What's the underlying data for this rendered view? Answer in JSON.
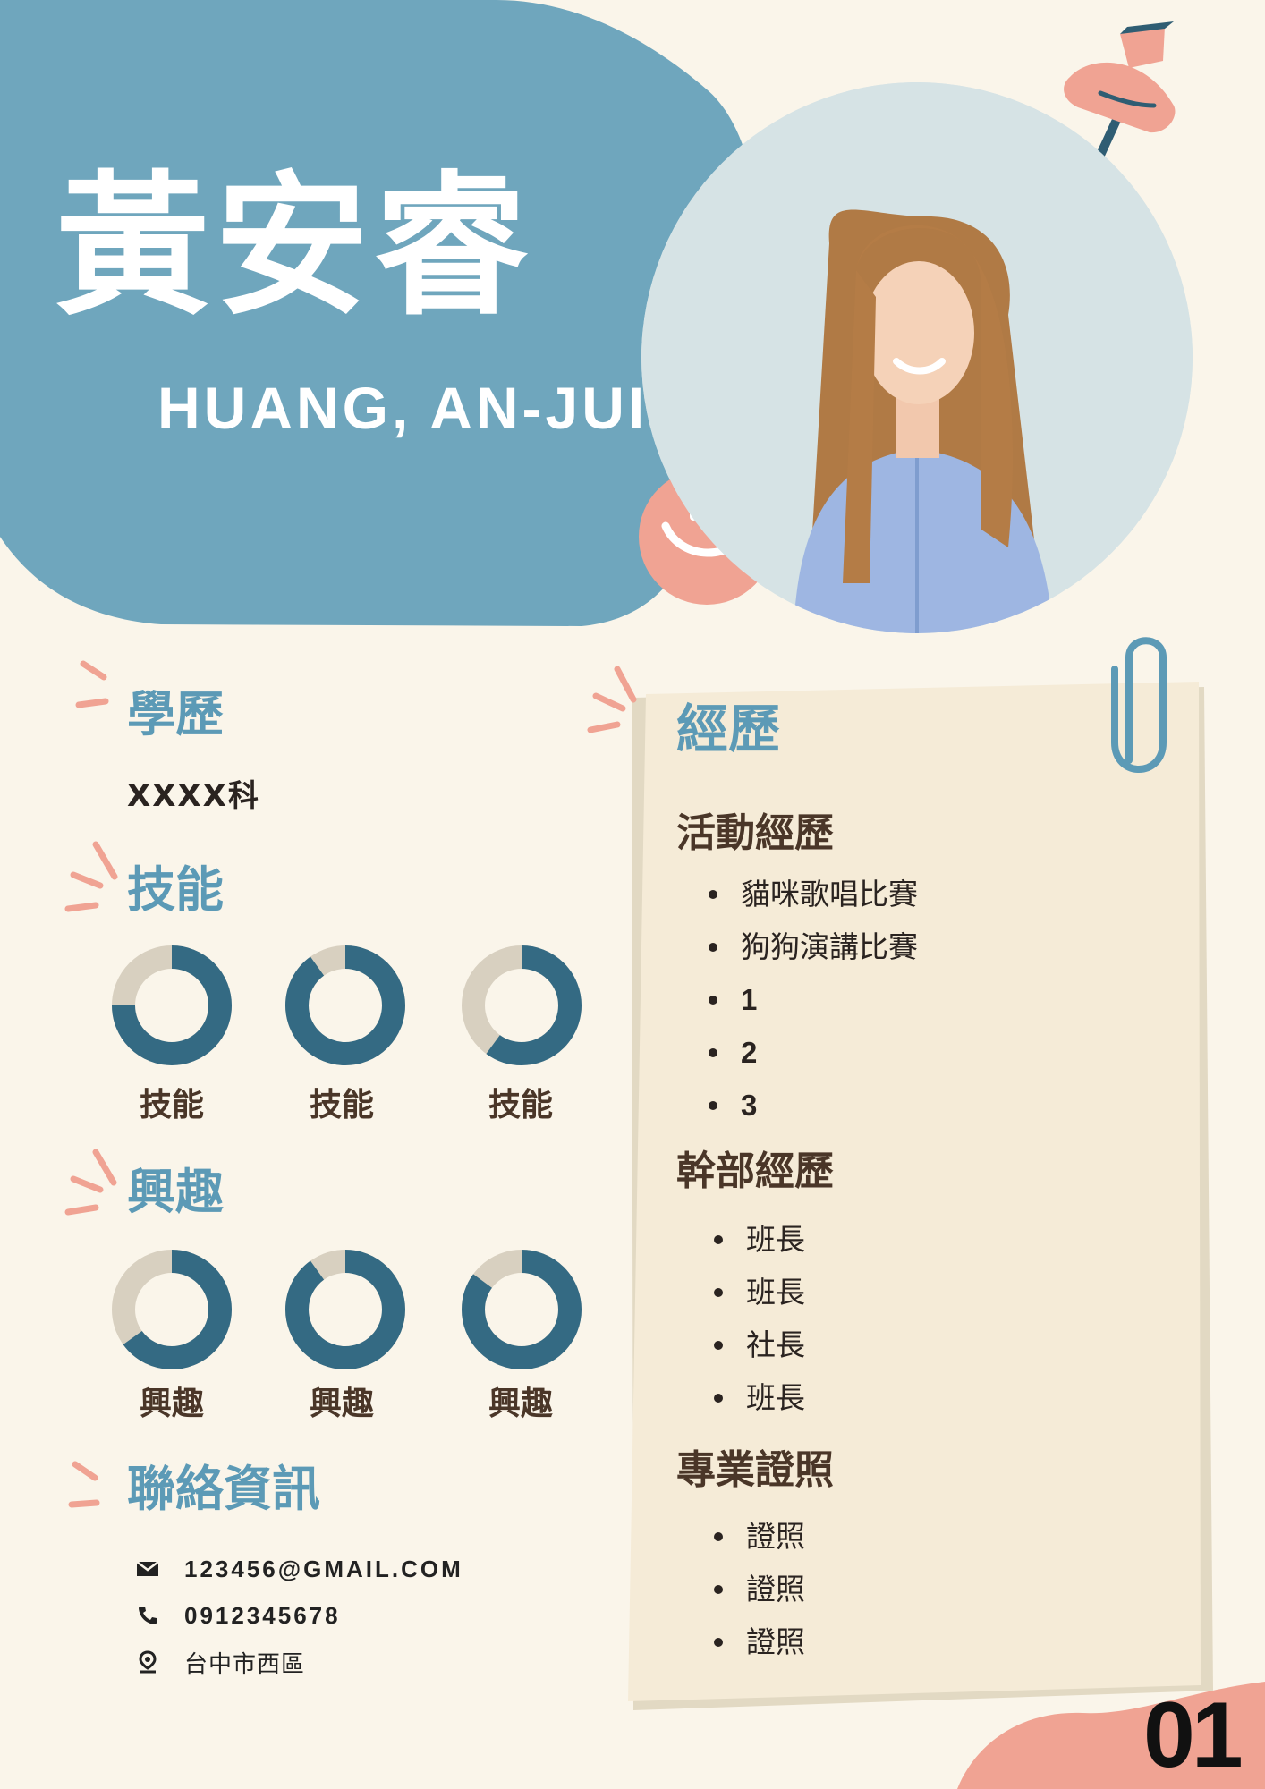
{
  "header": {
    "name_zh": "黃安睿",
    "name_en": "HUANG, AN-JUI"
  },
  "education": {
    "title": "學歷",
    "value": "XXXX科"
  },
  "skills": {
    "title": "技能",
    "items": [
      {
        "label": "技能",
        "level": 0.75
      },
      {
        "label": "技能",
        "level": 0.9
      },
      {
        "label": "技能",
        "level": 0.6
      }
    ]
  },
  "interests": {
    "title": "興趣",
    "items": [
      {
        "label": "興趣",
        "level": 0.65
      },
      {
        "label": "興趣",
        "level": 0.9
      },
      {
        "label": "興趣",
        "level": 0.85
      }
    ]
  },
  "contact": {
    "title": "聯絡資訊",
    "email": "123456@GMAIL.COM",
    "phone": "0912345678",
    "address": "台中市西區",
    "icons": [
      "envelope-icon",
      "phone-icon",
      "location-pin-icon"
    ]
  },
  "experience": {
    "title": "經歷",
    "activities_title": "活動經歷",
    "activities": [
      "貓咪歌唱比賽",
      "狗狗演講比賽",
      "1",
      "2",
      "3"
    ],
    "cadre_title": "幹部經歷",
    "cadre": [
      "班長",
      "班長",
      "社長",
      "班長"
    ],
    "certs_title": "專業證照",
    "certs": [
      "證照",
      "證照",
      "證照"
    ]
  },
  "page_number": "01",
  "colors": {
    "background": "#faf5ea",
    "blue_blob": "#6fa6bd",
    "accent_blue": "#5c9ab6",
    "donut_fill": "#346a83",
    "donut_track": "#d8d0c0",
    "pink": "#f0a393",
    "card": "#f5ebd7",
    "brown_text": "#4a3628"
  }
}
